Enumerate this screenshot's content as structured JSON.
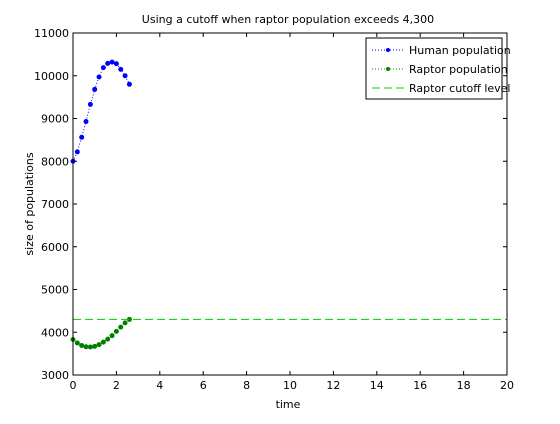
{
  "chart_data": {
    "type": "line",
    "title": "Using a cutoff when raptor population exceeds 4,300",
    "xlabel": "time",
    "ylabel": "size of populations",
    "xlim": [
      0,
      20
    ],
    "ylim": [
      3000,
      11000
    ],
    "xticks": [
      0,
      2,
      4,
      6,
      8,
      10,
      12,
      14,
      16,
      18,
      20
    ],
    "yticks": [
      3000,
      4000,
      5000,
      6000,
      7000,
      8000,
      9000,
      10000,
      11000
    ],
    "legend_position": "top-right",
    "series": [
      {
        "name": "Human population",
        "color": "#0000ff",
        "style": "dotted-with-points",
        "x": [
          0,
          0.2,
          0.4,
          0.6,
          0.8,
          1.0,
          1.2,
          1.4,
          1.6,
          1.8,
          2.0,
          2.2,
          2.4,
          2.6
        ],
        "y": [
          8000,
          8220,
          8560,
          8930,
          9330,
          9680,
          9970,
          10190,
          10290,
          10320,
          10280,
          10150,
          10000,
          9800
        ]
      },
      {
        "name": "Raptor population",
        "color": "#008000",
        "style": "dotted-with-points",
        "x": [
          0,
          0.2,
          0.4,
          0.6,
          0.8,
          1.0,
          1.2,
          1.4,
          1.6,
          1.8,
          2.0,
          2.2,
          2.4,
          2.6
        ],
        "y": [
          3830,
          3750,
          3690,
          3660,
          3655,
          3670,
          3710,
          3770,
          3840,
          3920,
          4020,
          4120,
          4220,
          4300
        ]
      },
      {
        "name": "Raptor cutoff level",
        "color": "#00cc00",
        "style": "dashed",
        "x": [
          0,
          20
        ],
        "y": [
          4300,
          4300
        ]
      }
    ]
  }
}
